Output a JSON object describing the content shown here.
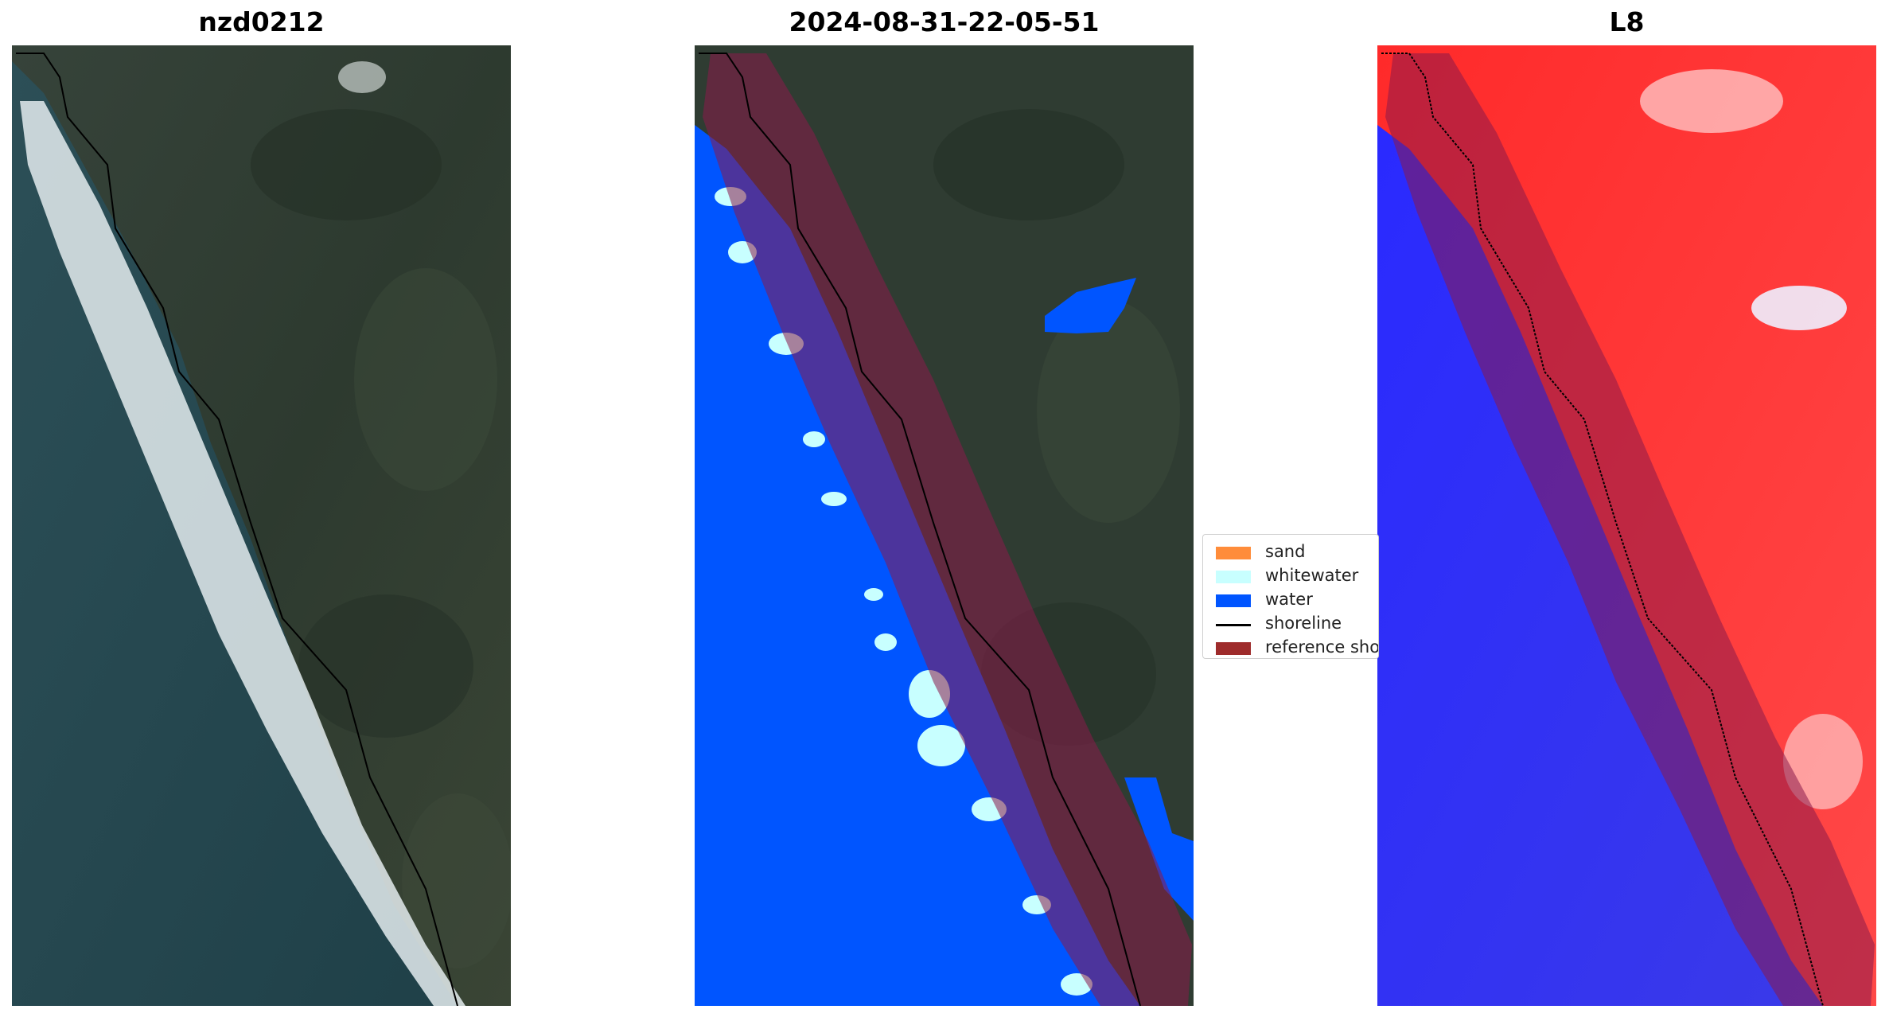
{
  "panels": [
    {
      "title": "nzd0212"
    },
    {
      "title": "2024-08-31-22-05-51"
    },
    {
      "title": "L8"
    }
  ],
  "legend": {
    "items": [
      {
        "label": "sand",
        "color": "#FF8C3A",
        "kind": "patch"
      },
      {
        "label": "whitewater",
        "color": "#C8FFFF",
        "kind": "patch"
      },
      {
        "label": "water",
        "color": "#0055FF",
        "kind": "patch"
      },
      {
        "label": "shoreline",
        "color": "#000000",
        "kind": "line"
      },
      {
        "label": "reference shoreline buffer",
        "color": "#9E2B2B",
        "kind": "patch"
      }
    ]
  },
  "colors": {
    "land": "#2f3c32",
    "ocean": "#23474f",
    "water_class": "#0055FF",
    "whitewater_class": "#C8FFFF",
    "buffer": "#8B1A4A",
    "index_high": "#FF1E1E",
    "index_low": "#1E1EFF"
  }
}
